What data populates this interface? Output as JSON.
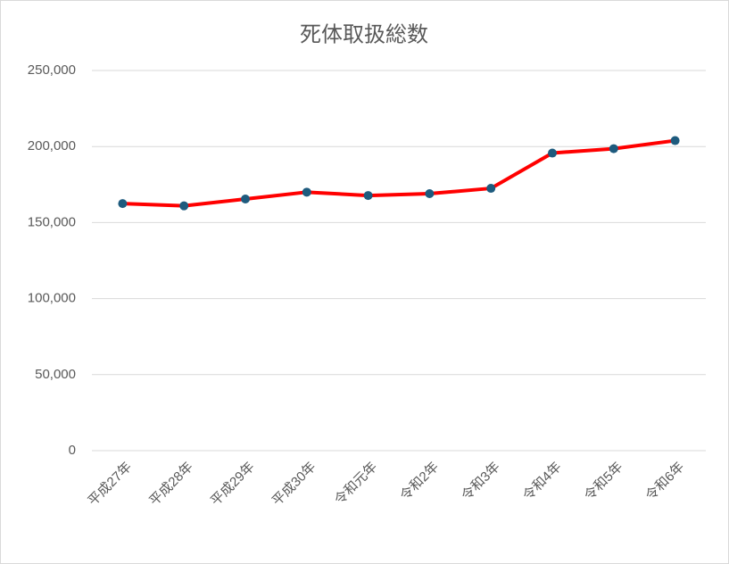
{
  "chart_data": {
    "type": "line",
    "title": "死体取扱総数",
    "categories": [
      "平成27年",
      "平成28年",
      "平成29年",
      "平成30年",
      "令和元年",
      "令和2年",
      "令和3年",
      "令和4年",
      "令和5年",
      "令和6年"
    ],
    "values": [
      162500,
      161000,
      165500,
      170000,
      167800,
      169000,
      172500,
      195700,
      198600,
      203900
    ],
    "color": "#ff0000",
    "marker_color": "#1e5b7e",
    "ylim": [
      0,
      250000
    ],
    "yticks": [
      0,
      {
        "value": 50000,
        "label": "50,000"
      },
      {
        "value": 100000,
        "label": "100,000"
      },
      {
        "value": 150000,
        "label": "150,000"
      },
      {
        "value": 200000,
        "label": "200,000"
      },
      {
        "value": 250000,
        "label": "250,000"
      }
    ],
    "grid": true
  }
}
